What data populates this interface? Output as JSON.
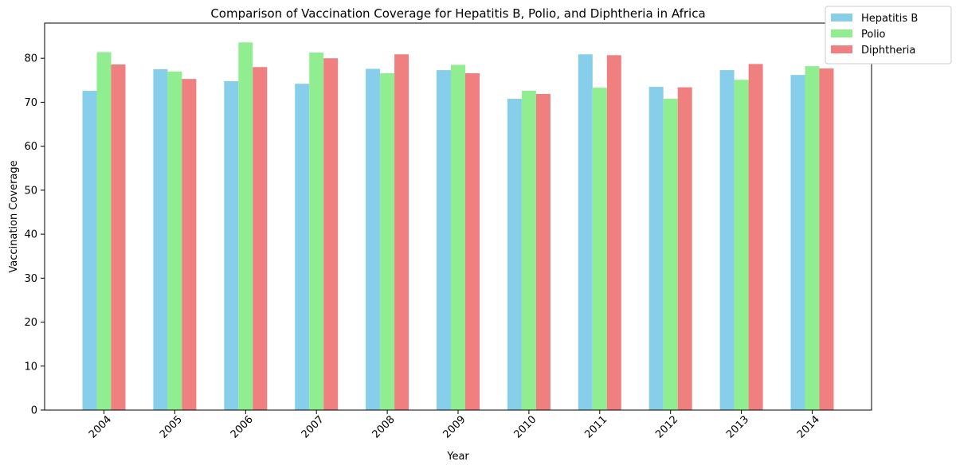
{
  "chart_data": {
    "type": "bar",
    "title": "Comparison of Vaccination Coverage for Hepatitis B, Polio, and Diphtheria in Africa",
    "xlabel": "Year",
    "ylabel": "Vaccination Coverage",
    "ylim": [
      0,
      88
    ],
    "yticks": [
      0,
      10,
      20,
      30,
      40,
      50,
      60,
      70,
      80
    ],
    "categories": [
      "2004",
      "2005",
      "2006",
      "2007",
      "2008",
      "2009",
      "2010",
      "2011",
      "2012",
      "2013",
      "2014"
    ],
    "legend_position": "top-right",
    "grid": false,
    "series": [
      {
        "name": "Hepatitis B",
        "color": "#87ceeb",
        "values": [
          72.6,
          77.5,
          74.8,
          74.2,
          77.6,
          77.3,
          70.8,
          80.9,
          73.5,
          77.3,
          76.2
        ]
      },
      {
        "name": "Polio",
        "color": "#90ee90",
        "values": [
          81.4,
          77.0,
          83.6,
          81.3,
          76.6,
          78.5,
          72.6,
          73.3,
          70.8,
          75.1,
          78.2
        ]
      },
      {
        "name": "Diphtheria",
        "color": "#f08080",
        "values": [
          78.6,
          75.3,
          78.0,
          80.0,
          80.9,
          76.6,
          71.9,
          80.7,
          73.4,
          78.7,
          77.7
        ]
      }
    ]
  }
}
